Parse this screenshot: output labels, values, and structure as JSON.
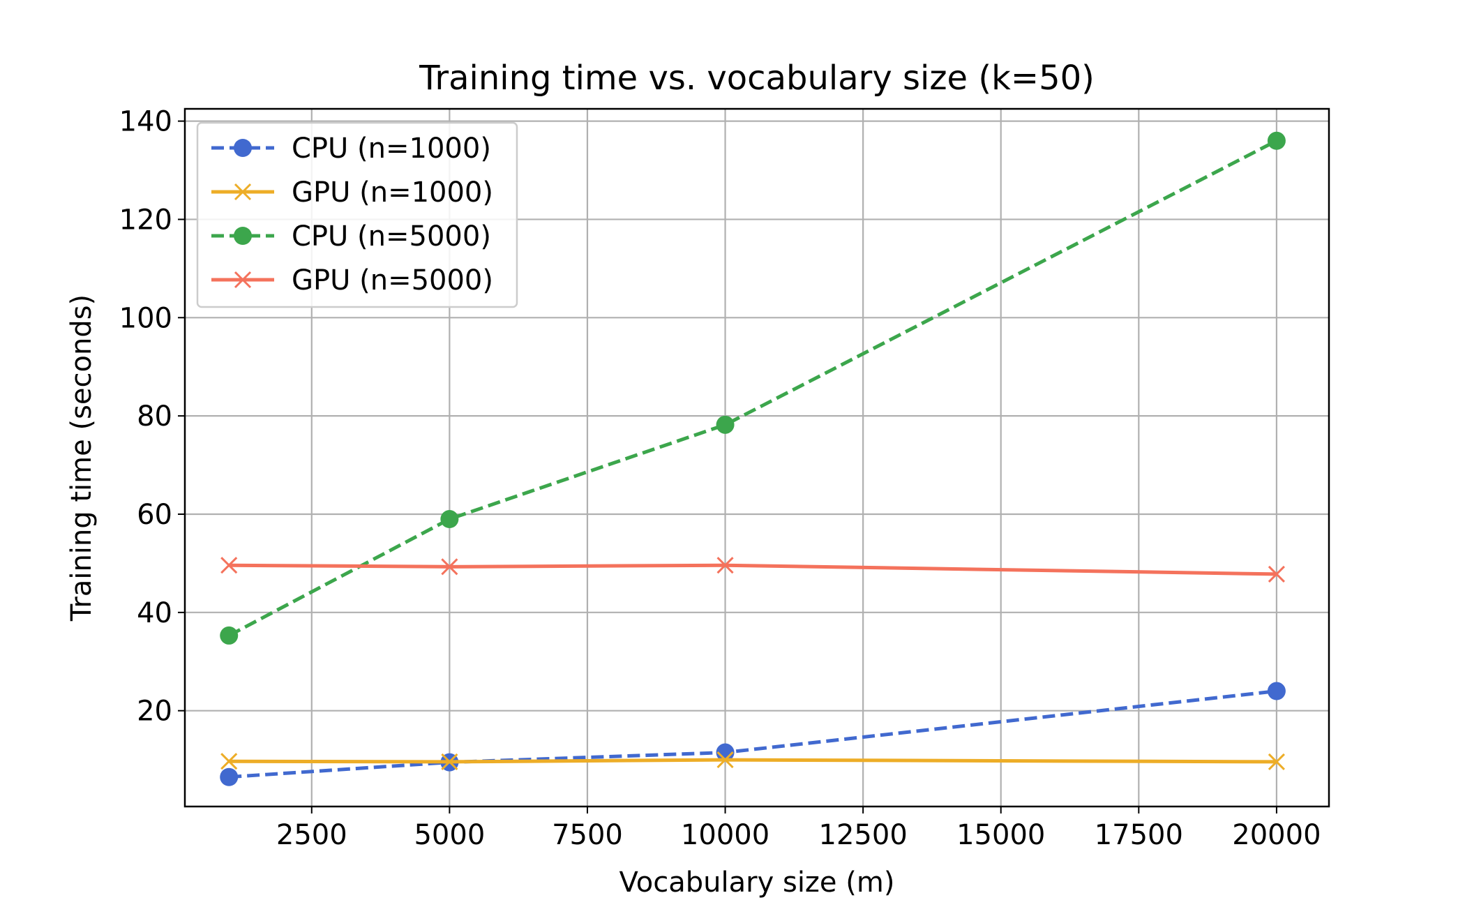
{
  "chart_data": {
    "type": "line",
    "title": "Training time vs. vocabulary size (k=50)",
    "xlabel": "Vocabulary size (m)",
    "ylabel": "Training time (seconds)",
    "x": [
      1000,
      5000,
      10000,
      20000
    ],
    "xlim": [
      200,
      20950
    ],
    "ylim": [
      0.5,
      142.5
    ],
    "xticks": [
      2500,
      5000,
      7500,
      10000,
      12500,
      15000,
      17500,
      20000
    ],
    "xtick_labels": [
      "2500",
      "5000",
      "7500",
      "10000",
      "12500",
      "15000",
      "17500",
      "20000"
    ],
    "yticks": [
      20,
      40,
      60,
      80,
      100,
      120,
      140
    ],
    "ytick_labels": [
      "20",
      "40",
      "60",
      "80",
      "100",
      "120",
      "140"
    ],
    "grid": true,
    "legend_position": "top-left",
    "series": [
      {
        "name": "CPU (n=1000)",
        "values": [
          6.5,
          9.5,
          11.5,
          24.0
        ],
        "color": "#4169cf",
        "dash": "dashed",
        "marker": "circle"
      },
      {
        "name": "GPU (n=1000)",
        "values": [
          9.7,
          9.6,
          10.0,
          9.6
        ],
        "color": "#edad27",
        "dash": "solid",
        "marker": "x"
      },
      {
        "name": "CPU (n=5000)",
        "values": [
          35.3,
          59.0,
          78.2,
          136.0
        ],
        "color": "#3ca64c",
        "dash": "dashed",
        "marker": "circle"
      },
      {
        "name": "GPU (n=5000)",
        "values": [
          49.6,
          49.3,
          49.6,
          47.8
        ],
        "color": "#f4725c",
        "dash": "solid",
        "marker": "x"
      }
    ]
  }
}
